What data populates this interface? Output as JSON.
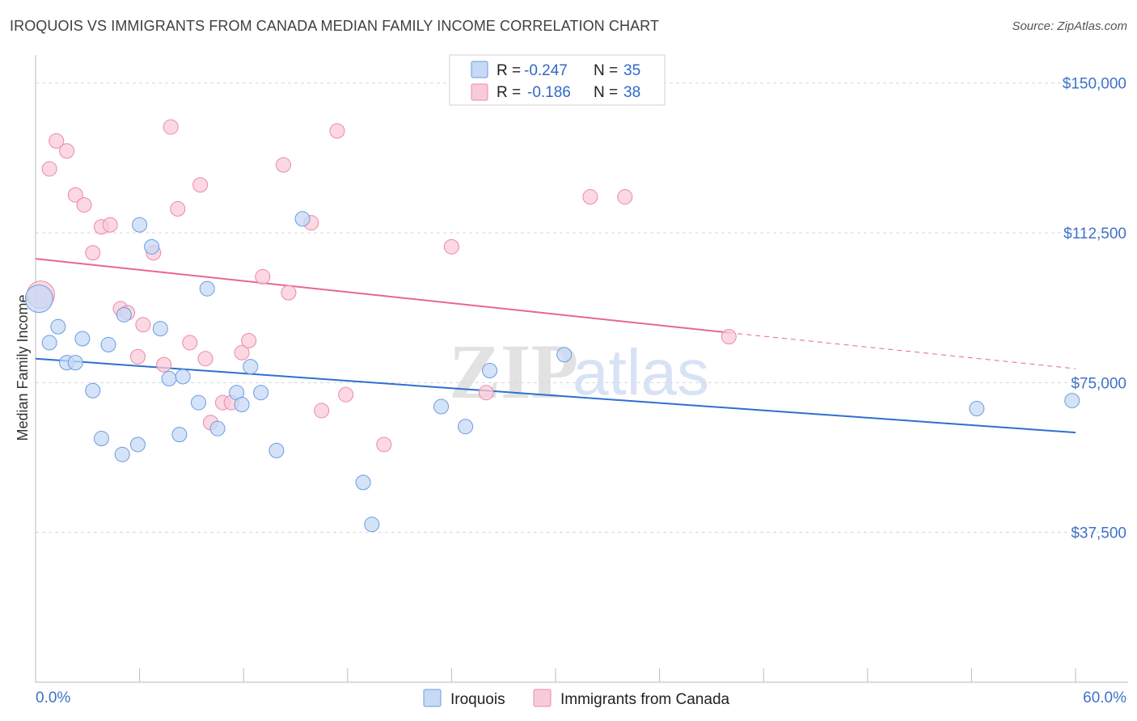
{
  "title": "IROQUOIS VS IMMIGRANTS FROM CANADA MEDIAN FAMILY INCOME CORRELATION CHART",
  "source": "Source: ZipAtlas.com",
  "watermark": {
    "zip": "ZIP",
    "atlas": "atlas"
  },
  "colors": {
    "blue_fill": "#c6daf5",
    "blue_stroke": "#6b9be0",
    "blue_line": "#2f6fd0",
    "pink_fill": "#f9cbd8",
    "pink_stroke": "#ea8aa8",
    "pink_line": "#e8678f",
    "grid": "#d8d8d8",
    "tick_label": "#3f72c8"
  },
  "legend": {
    "rows": [
      {
        "r_label": "R = ",
        "r_value": "-0.247",
        "n_label": "N = ",
        "n_value": "35"
      },
      {
        "r_label": "R = ",
        "r_value": "-0.186",
        "n_label": "N = ",
        "n_value": "38"
      }
    ]
  },
  "chart_data": {
    "type": "scatter",
    "title": "IROQUOIS VS IMMIGRANTS FROM CANADA MEDIAN FAMILY INCOME CORRELATION CHART",
    "xlabel": "",
    "ylabel": "Median Family Income",
    "xlim": [
      0,
      60
    ],
    "ylim": [
      0,
      155000
    ],
    "x_tick_labels": [
      "0.0%",
      "60.0%"
    ],
    "y_ticks": [
      37500,
      75000,
      112500,
      150000
    ],
    "y_tick_labels": [
      "$37,500",
      "$75,000",
      "$112,500",
      "$150,000"
    ],
    "grid": true,
    "legend_position": "top-center",
    "series": [
      {
        "name": "Iroquois",
        "color": "blue",
        "trend": {
          "x0": 0,
          "y0": 81000,
          "x1": 60,
          "y1": 62500
        },
        "points": [
          {
            "x": 0.2,
            "y": 96000,
            "big": true
          },
          {
            "x": 0.8,
            "y": 85000
          },
          {
            "x": 1.3,
            "y": 89000
          },
          {
            "x": 1.8,
            "y": 80000
          },
          {
            "x": 2.3,
            "y": 80000
          },
          {
            "x": 2.7,
            "y": 86000
          },
          {
            "x": 3.3,
            "y": 73000
          },
          {
            "x": 3.8,
            "y": 61000
          },
          {
            "x": 4.2,
            "y": 84500
          },
          {
            "x": 5.0,
            "y": 57000
          },
          {
            "x": 5.1,
            "y": 92000
          },
          {
            "x": 5.9,
            "y": 59500
          },
          {
            "x": 6.0,
            "y": 114500
          },
          {
            "x": 6.7,
            "y": 109000
          },
          {
            "x": 7.2,
            "y": 88500
          },
          {
            "x": 7.7,
            "y": 76000
          },
          {
            "x": 8.3,
            "y": 62000
          },
          {
            "x": 8.5,
            "y": 76500
          },
          {
            "x": 9.4,
            "y": 70000
          },
          {
            "x": 9.9,
            "y": 98500
          },
          {
            "x": 10.5,
            "y": 63500
          },
          {
            "x": 11.6,
            "y": 72500
          },
          {
            "x": 11.9,
            "y": 69500
          },
          {
            "x": 12.4,
            "y": 79000
          },
          {
            "x": 13.0,
            "y": 72500
          },
          {
            "x": 13.9,
            "y": 58000
          },
          {
            "x": 15.4,
            "y": 116000
          },
          {
            "x": 18.9,
            "y": 50000
          },
          {
            "x": 19.4,
            "y": 39500
          },
          {
            "x": 23.4,
            "y": 69000
          },
          {
            "x": 24.8,
            "y": 64000
          },
          {
            "x": 26.2,
            "y": 78000
          },
          {
            "x": 30.5,
            "y": 82000
          },
          {
            "x": 54.3,
            "y": 68500
          },
          {
            "x": 59.8,
            "y": 70500
          }
        ]
      },
      {
        "name": "Immigrants from Canada",
        "color": "pink",
        "trend": {
          "x0": 0,
          "y0": 106000,
          "x1": 40,
          "y1": 87500,
          "dashed_x1": 60,
          "dashed_y1": 78500
        },
        "points": [
          {
            "x": 0.3,
            "y": 97000,
            "big": true
          },
          {
            "x": 0.8,
            "y": 128500
          },
          {
            "x": 1.2,
            "y": 135500
          },
          {
            "x": 1.8,
            "y": 133000
          },
          {
            "x": 2.3,
            "y": 122000
          },
          {
            "x": 2.8,
            "y": 119500
          },
          {
            "x": 3.3,
            "y": 107500
          },
          {
            "x": 3.8,
            "y": 114000
          },
          {
            "x": 4.3,
            "y": 114500
          },
          {
            "x": 4.9,
            "y": 93500
          },
          {
            "x": 5.3,
            "y": 92500
          },
          {
            "x": 5.9,
            "y": 81500
          },
          {
            "x": 6.2,
            "y": 89500
          },
          {
            "x": 6.8,
            "y": 107500
          },
          {
            "x": 7.4,
            "y": 79500
          },
          {
            "x": 7.8,
            "y": 139000
          },
          {
            "x": 8.2,
            "y": 118500
          },
          {
            "x": 8.9,
            "y": 85000
          },
          {
            "x": 9.5,
            "y": 124500
          },
          {
            "x": 9.8,
            "y": 81000
          },
          {
            "x": 10.1,
            "y": 65000
          },
          {
            "x": 10.8,
            "y": 70000
          },
          {
            "x": 11.3,
            "y": 70000
          },
          {
            "x": 11.9,
            "y": 82500
          },
          {
            "x": 12.3,
            "y": 85500
          },
          {
            "x": 13.1,
            "y": 101500
          },
          {
            "x": 14.3,
            "y": 129500
          },
          {
            "x": 14.6,
            "y": 97500
          },
          {
            "x": 15.9,
            "y": 115000
          },
          {
            "x": 16.5,
            "y": 68000
          },
          {
            "x": 17.4,
            "y": 138000
          },
          {
            "x": 17.9,
            "y": 72000
          },
          {
            "x": 20.1,
            "y": 59500
          },
          {
            "x": 24.0,
            "y": 109000
          },
          {
            "x": 26.0,
            "y": 72500
          },
          {
            "x": 32.0,
            "y": 121500
          },
          {
            "x": 34.0,
            "y": 121500
          },
          {
            "x": 40.0,
            "y": 86500
          }
        ]
      }
    ]
  }
}
